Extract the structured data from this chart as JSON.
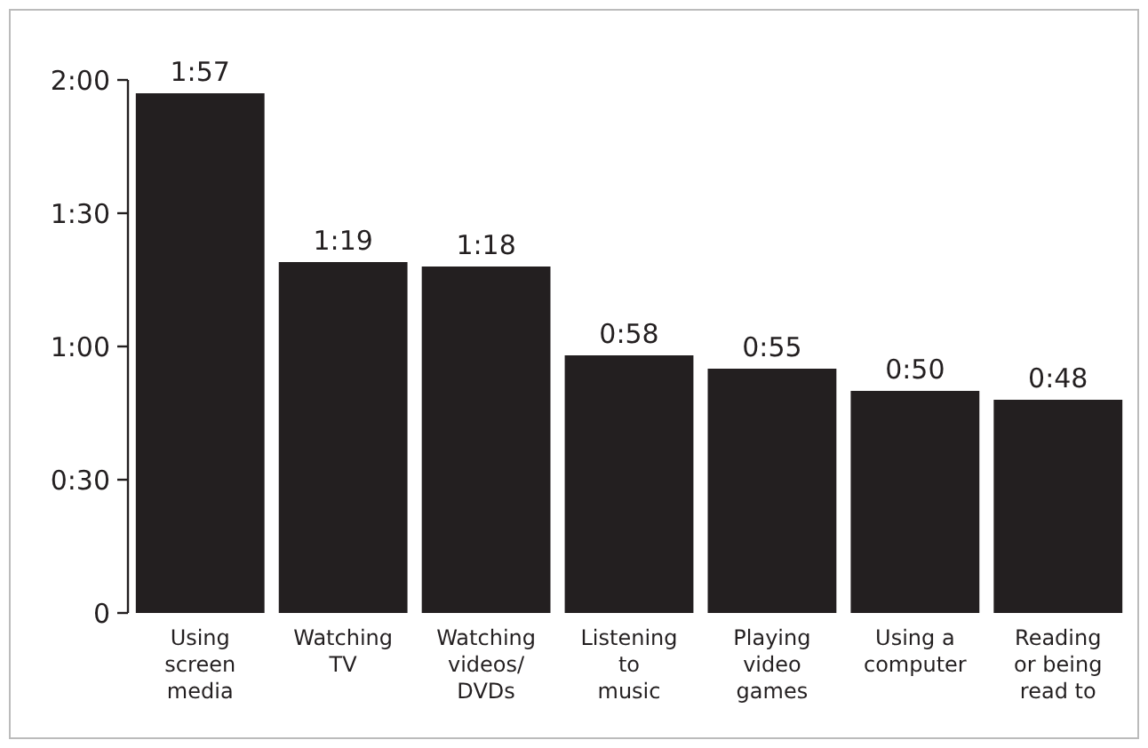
{
  "chart_data": {
    "type": "bar",
    "categories": [
      "Using\nscreen\nmedia",
      "Watching\nTV",
      "Watching\nvideos/\nDVDs",
      "Listening\nto\nmusic",
      "Playing\nvideo\ngames",
      "Using a\ncomputer",
      "Reading\nor being\nread to"
    ],
    "values": [
      117,
      79,
      78,
      58,
      55,
      50,
      48
    ],
    "value_labels": [
      "1:57",
      "1:19",
      "1:18",
      "0:58",
      "0:55",
      "0:50",
      "0:48"
    ],
    "color": "#231f20",
    "ylim": [
      0,
      120
    ],
    "yticks": [
      {
        "value": 0,
        "label": "0"
      },
      {
        "value": 30,
        "label": "0:30"
      },
      {
        "value": 60,
        "label": "1:00"
      },
      {
        "value": 90,
        "label": "1:30"
      },
      {
        "value": 120,
        "label": "2:00"
      }
    ],
    "grid": false
  }
}
